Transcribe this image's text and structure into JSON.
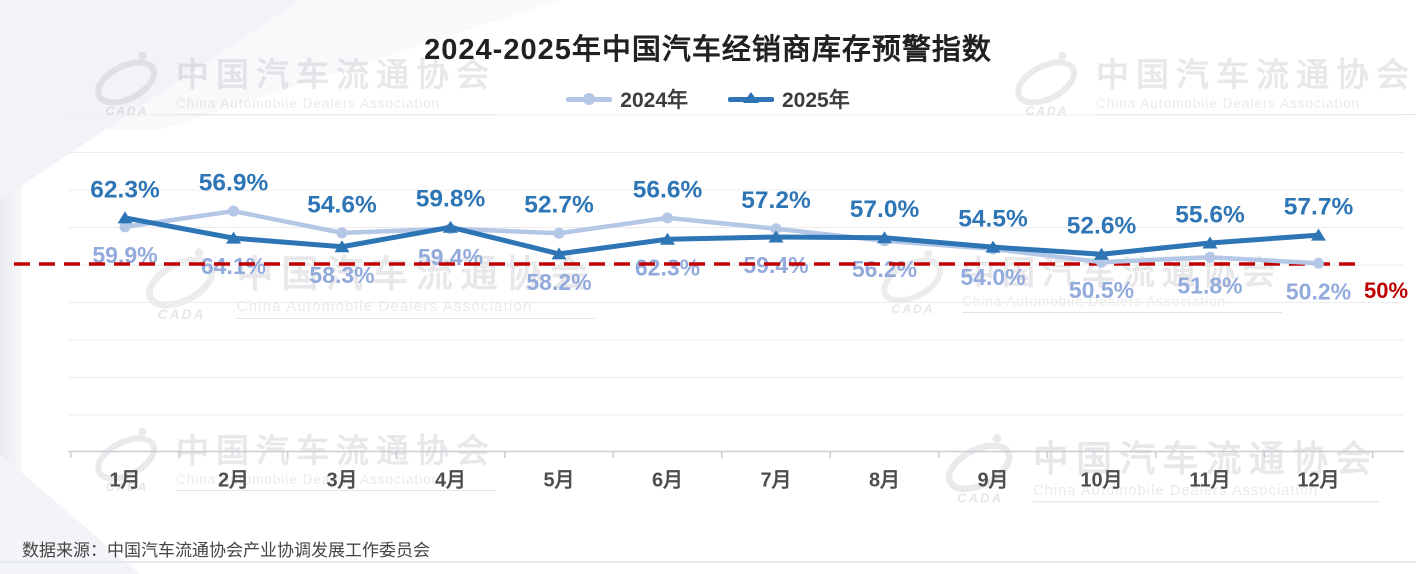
{
  "page": {
    "title": "2024-2025年中国汽车经销商库存预警指数",
    "source": "数据来源：中国汽车流通协会产业协调发展工作委员会"
  },
  "watermark": {
    "zh": "中国汽车流通协会",
    "en": "China Automobile Dealers Association",
    "logo_text": "CADA"
  },
  "colors": {
    "series_2024": "#b4c7e7",
    "label_2024": "#92aadc",
    "series_2025": "#2e75b6",
    "label_2025": "#2e75b6",
    "threshold_red": "#c00000",
    "grid": "#ececec",
    "axis": "#c9ccd1",
    "axis_label": "#4d4d4d",
    "title_text": "#212121"
  },
  "chart_data": {
    "type": "line",
    "title": "2024-2025年中国汽车经销商库存预警指数",
    "xlabel": "",
    "ylabel": "",
    "categories": [
      "1月",
      "2月",
      "3月",
      "4月",
      "5月",
      "6月",
      "7月",
      "8月",
      "9月",
      "10月",
      "11月",
      "12月"
    ],
    "series": [
      {
        "name": "2024年",
        "marker": "circle",
        "color": "#b4c7e7",
        "label_color": "#92aadc",
        "values": [
          59.9,
          64.1,
          58.3,
          59.4,
          58.2,
          62.3,
          59.4,
          56.2,
          54.0,
          50.5,
          51.8,
          50.2
        ]
      },
      {
        "name": "2025年",
        "marker": "triangle",
        "color": "#2e75b6",
        "label_color": "#2e75b6",
        "values": [
          62.3,
          56.9,
          54.6,
          59.8,
          52.7,
          56.6,
          57.2,
          57.0,
          54.5,
          52.6,
          55.6,
          57.7
        ]
      }
    ],
    "threshold": {
      "value": 50,
      "label": "50%",
      "color": "#c00000"
    },
    "ylim": [
      40,
      85
    ],
    "grid": true,
    "legend_position": "top",
    "data_labels": "percent_one_decimal"
  }
}
